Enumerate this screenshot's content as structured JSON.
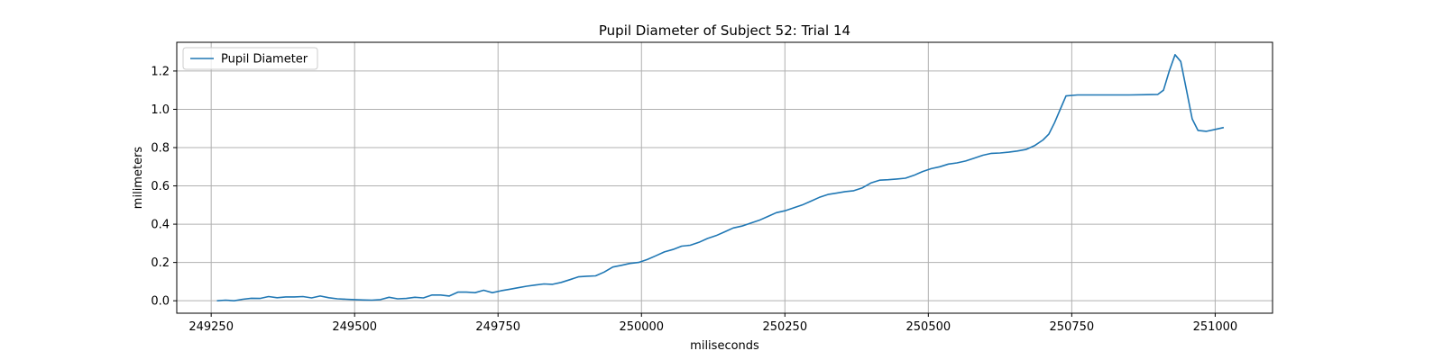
{
  "chart_data": {
    "type": "line",
    "title": "Pupil Diameter of Subject 52: Trial 14",
    "xlabel": "miliseconds",
    "ylabel": "milimeters",
    "xlim": [
      249190,
      251100
    ],
    "ylim": [
      -0.065,
      1.35
    ],
    "xticks": [
      249250,
      249500,
      249750,
      250000,
      250250,
      250500,
      250750,
      251000
    ],
    "yticks": [
      0.0,
      0.2,
      0.4,
      0.6,
      0.8,
      1.0,
      1.2
    ],
    "ytick_labels": [
      "0.0",
      "0.2",
      "0.4",
      "0.6",
      "0.8",
      "1.0",
      "1.2"
    ],
    "grid": true,
    "legend_position": "upper-left",
    "colors": {
      "line": "#1f77b4",
      "grid": "#b0b0b0"
    },
    "series": [
      {
        "name": "Pupil Diameter",
        "x": [
          249260,
          249275,
          249290,
          249305,
          249320,
          249335,
          249350,
          249365,
          249380,
          249395,
          249410,
          249425,
          249440,
          249455,
          249470,
          249485,
          249500,
          249515,
          249530,
          249545,
          249560,
          249575,
          249590,
          249605,
          249620,
          249635,
          249650,
          249665,
          249680,
          249695,
          249710,
          249725,
          249740,
          249755,
          249770,
          249785,
          249800,
          249815,
          249830,
          249845,
          249860,
          249875,
          249890,
          249905,
          249920,
          249935,
          249950,
          249965,
          249980,
          249995,
          250010,
          250025,
          250040,
          250055,
          250070,
          250085,
          250100,
          250115,
          250130,
          250145,
          250160,
          250175,
          250190,
          250205,
          250220,
          250235,
          250250,
          250265,
          250280,
          250295,
          250310,
          250325,
          250340,
          250355,
          250370,
          250385,
          250400,
          250415,
          250430,
          250445,
          250460,
          250475,
          250490,
          250505,
          250520,
          250535,
          250550,
          250565,
          250580,
          250595,
          250610,
          250625,
          250640,
          250655,
          250670,
          250685,
          250700,
          250710,
          250720,
          250730,
          250740,
          250760,
          250800,
          250850,
          250900,
          250910,
          250920,
          250930,
          250940,
          250950,
          250960,
          250970,
          250985,
          251000,
          251015
        ],
        "y": [
          0.0,
          0.003,
          0.0,
          0.008,
          0.013,
          0.012,
          0.022,
          0.016,
          0.02,
          0.02,
          0.022,
          0.015,
          0.025,
          0.016,
          0.01,
          0.008,
          0.006,
          0.004,
          0.003,
          0.006,
          0.018,
          0.01,
          0.012,
          0.018,
          0.015,
          0.03,
          0.03,
          0.025,
          0.045,
          0.045,
          0.042,
          0.055,
          0.042,
          0.052,
          0.06,
          0.068,
          0.076,
          0.082,
          0.088,
          0.086,
          0.096,
          0.11,
          0.125,
          0.128,
          0.13,
          0.15,
          0.176,
          0.185,
          0.195,
          0.2,
          0.215,
          0.235,
          0.255,
          0.268,
          0.285,
          0.29,
          0.305,
          0.325,
          0.34,
          0.36,
          0.38,
          0.39,
          0.405,
          0.42,
          0.44,
          0.46,
          0.47,
          0.485,
          0.5,
          0.52,
          0.54,
          0.555,
          0.562,
          0.57,
          0.575,
          0.59,
          0.615,
          0.63,
          0.632,
          0.636,
          0.64,
          0.655,
          0.675,
          0.69,
          0.7,
          0.714,
          0.72,
          0.73,
          0.745,
          0.76,
          0.77,
          0.772,
          0.776,
          0.782,
          0.79,
          0.81,
          0.84,
          0.87,
          0.93,
          1.0,
          1.07,
          1.075,
          1.075,
          1.075,
          1.078,
          1.1,
          1.2,
          1.285,
          1.25,
          1.1,
          0.95,
          0.89,
          0.885,
          0.895,
          0.905
        ]
      }
    ]
  }
}
